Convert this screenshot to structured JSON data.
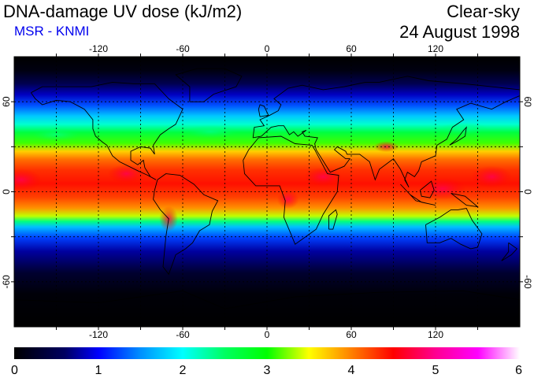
{
  "header": {
    "title": "DNA-damage UV dose (kJ/m2)",
    "org": "MSR - KNMI",
    "condition": "Clear-sky",
    "date": "24 August 1998"
  },
  "map": {
    "projection": "equirectangular",
    "lon_range": [
      -180,
      180
    ],
    "lat_range": [
      -90,
      90
    ],
    "lon_tick_labels": [
      "-120",
      "-60",
      "0",
      "60",
      "120"
    ],
    "lon_ticks": [
      -120,
      -60,
      0,
      60,
      120
    ],
    "lat_tick_labels": [
      "60",
      "0",
      "-60"
    ],
    "lat_ticks": [
      60,
      0,
      -60
    ],
    "gridlines": "dotted every 30 degrees",
    "coastlines": true,
    "colors": {
      "ocean_bg": "#000000",
      "frame": "#000000",
      "coast": "#000000"
    }
  },
  "colorbar": {
    "min": 0,
    "max": 6,
    "labels": [
      "0",
      "1",
      "2",
      "3",
      "4",
      "5",
      "6"
    ],
    "stops": [
      {
        "value": 0.0,
        "color": "#000000"
      },
      {
        "value": 0.6,
        "color": "#000060"
      },
      {
        "value": 1.0,
        "color": "#0000ff"
      },
      {
        "value": 1.5,
        "color": "#0090ff"
      },
      {
        "value": 2.0,
        "color": "#00ffff"
      },
      {
        "value": 2.5,
        "color": "#00ff60"
      },
      {
        "value": 3.0,
        "color": "#00ff00"
      },
      {
        "value": 3.5,
        "color": "#ffff00"
      },
      {
        "value": 4.0,
        "color": "#ff8000"
      },
      {
        "value": 4.5,
        "color": "#ff0000"
      },
      {
        "value": 5.0,
        "color": "#ff0090"
      },
      {
        "value": 5.5,
        "color": "#ff00ff"
      },
      {
        "value": 6.0,
        "color": "#ffffff"
      }
    ]
  }
}
